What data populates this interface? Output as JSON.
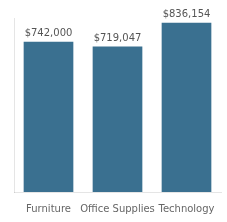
{
  "chart_data": {
    "type": "bar",
    "categories": [
      "Furniture",
      "Office Supplies",
      "Technology"
    ],
    "values": [
      742000,
      719047,
      836154
    ],
    "value_labels": [
      "$742,000",
      "$719,047",
      "$836,154"
    ],
    "color": "#3a7090",
    "ylim": [
      0,
      860000
    ],
    "yticks": [],
    "grid": false,
    "tick_labels": "x",
    "data_labels": true
  }
}
